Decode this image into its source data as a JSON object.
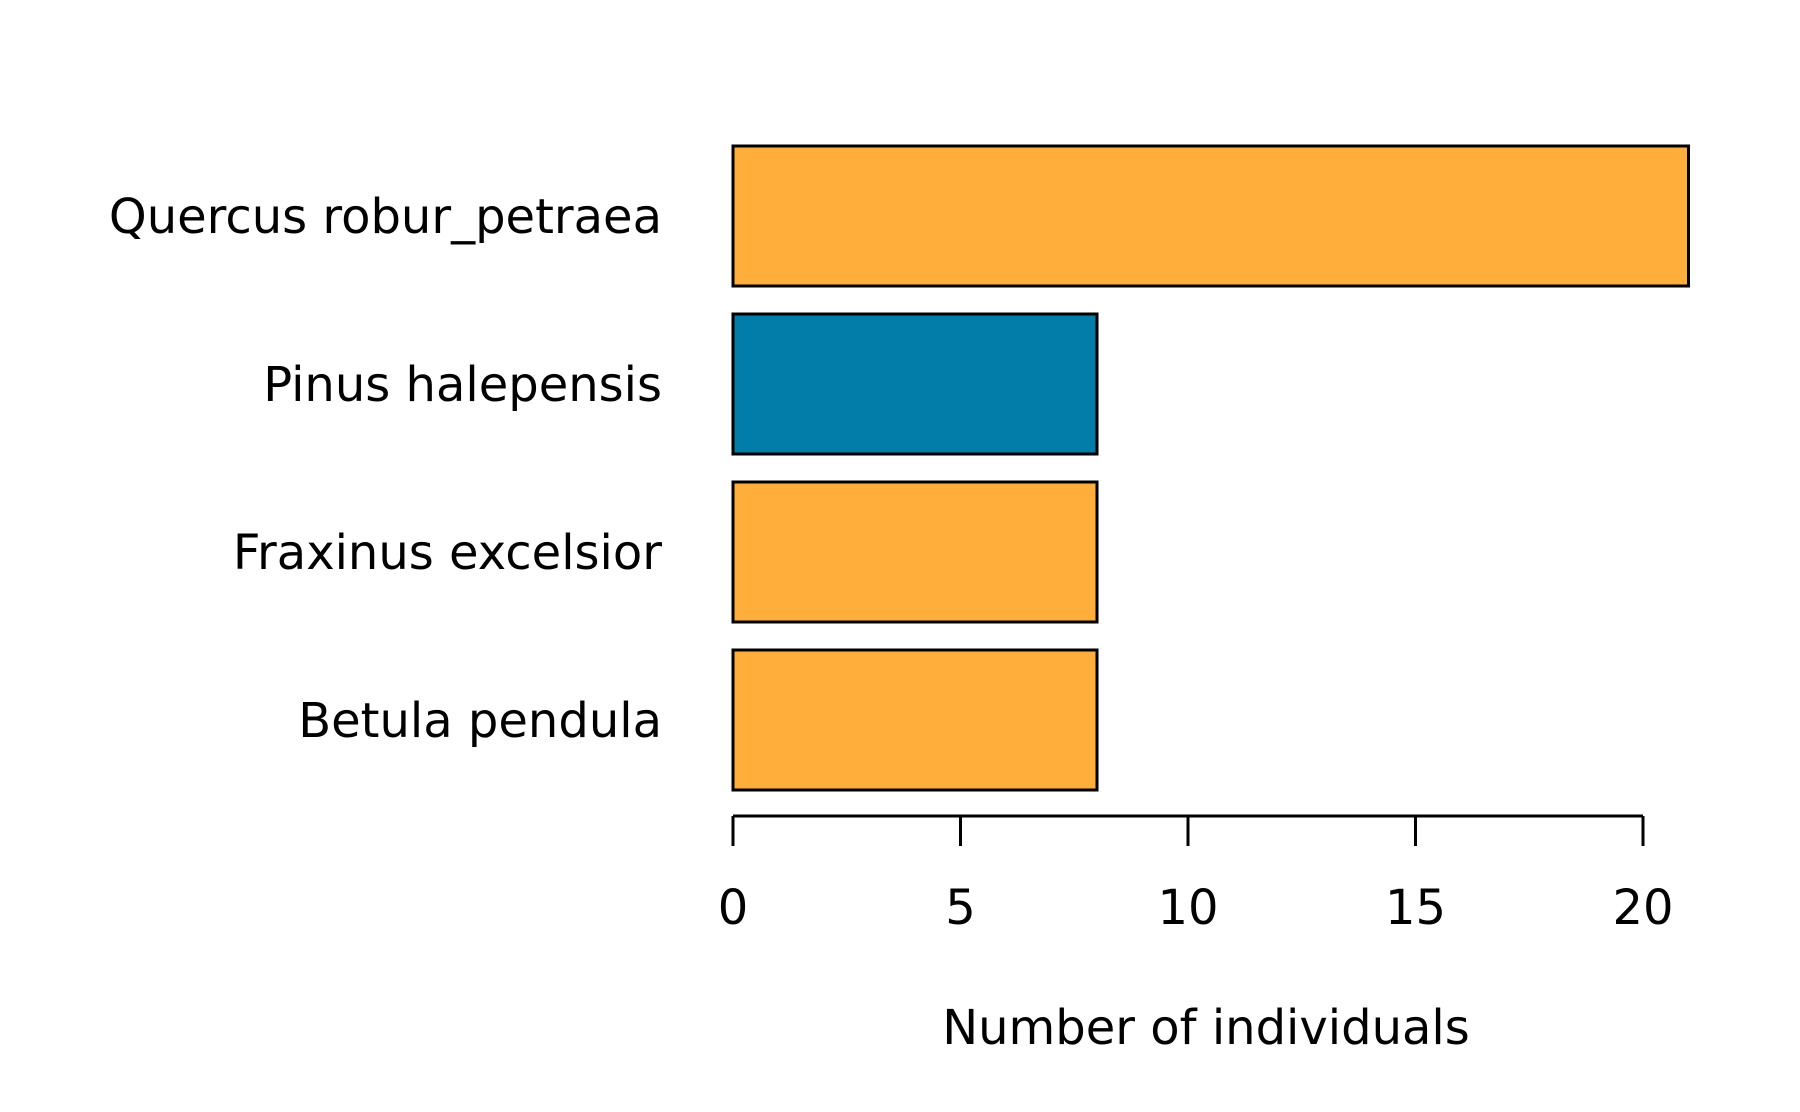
{
  "chart_data": {
    "type": "bar",
    "orientation": "horizontal",
    "categories": [
      "Quercus robur_petraea",
      "Pinus halepensis",
      "Fraxinus excelsior",
      "Betula pendula"
    ],
    "values": [
      21,
      8,
      8,
      8
    ],
    "bar_colors": [
      "#FFAE3B",
      "#027CA9",
      "#FFAE3B",
      "#FFAE3B"
    ],
    "xlabel": "Number of individuals",
    "xticks": [
      0,
      5,
      10,
      15,
      20
    ],
    "xlim": [
      0,
      20
    ],
    "grid": false,
    "legend": "none"
  }
}
